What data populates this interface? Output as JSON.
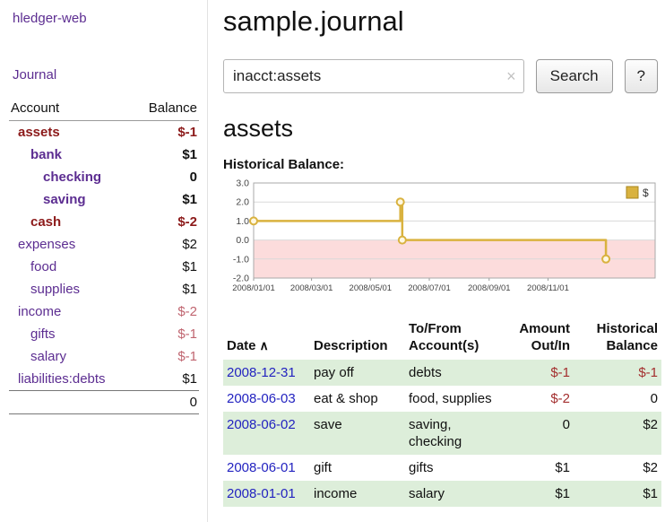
{
  "colors": {
    "purple": "#5c2d91",
    "maroon": "#8c1a1a",
    "negative_soft": "#c06570",
    "link_blue": "#2323c0",
    "row_green": "#ddeeda",
    "chart_line": "#d9b23f",
    "chart_marker_fill": "#fff8e1",
    "chart_negative_fill": "#fcdcdc"
  },
  "brand": {
    "label": "hledger-web"
  },
  "nav": {
    "journal": "Journal"
  },
  "sidebar": {
    "header": {
      "account": "Account",
      "balance": "Balance"
    },
    "accounts": [
      {
        "name": "assets",
        "balance": "$-1"
      },
      {
        "name": "bank",
        "balance": "$1"
      },
      {
        "name": "checking",
        "balance": "0"
      },
      {
        "name": "saving",
        "balance": "$1"
      },
      {
        "name": "cash",
        "balance": "$-2"
      },
      {
        "name": "expenses",
        "balance": "$2"
      },
      {
        "name": "food",
        "balance": "$1"
      },
      {
        "name": "supplies",
        "balance": "$1"
      },
      {
        "name": "income",
        "balance": "$-2"
      },
      {
        "name": "gifts",
        "balance": "$-1"
      },
      {
        "name": "salary",
        "balance": "$-1"
      },
      {
        "name": "liabilities:debts",
        "balance": "$1"
      }
    ],
    "total": "0"
  },
  "main": {
    "title": "sample.journal",
    "search": {
      "value": "inacct:assets",
      "clear_icon": "×",
      "button": "Search",
      "help_button": "?"
    },
    "account_heading": "assets",
    "chart_label": "Historical Balance:"
  },
  "chart_data": {
    "type": "line",
    "step": true,
    "title": "Historical Balance",
    "series": [
      {
        "name": "$",
        "points": [
          [
            "2008-01-01",
            1
          ],
          [
            "2008-06-01",
            2
          ],
          [
            "2008-06-03",
            0
          ],
          [
            "2008-12-31",
            -1
          ]
        ]
      }
    ],
    "ylim": [
      -2.0,
      3.0
    ],
    "yticks": [
      3.0,
      2.0,
      1.0,
      0.0,
      -1.0,
      -2.0
    ],
    "xlim": [
      "2008-01-01",
      "2009-02-20"
    ],
    "xticks": [
      [
        "2008-01-01",
        "2008/01/01"
      ],
      [
        "2008-03-01",
        "2008/03/01"
      ],
      [
        "2008-05-01",
        "2008/05/01"
      ],
      [
        "2008-07-01",
        "2008/07/01"
      ],
      [
        "2008-09-01",
        "2008/09/01"
      ],
      [
        "2008-11-01",
        "2008/11/01"
      ]
    ],
    "legend": {
      "label": "$",
      "position": "top-right"
    },
    "negative_region_shaded": true,
    "grid": "horizontal"
  },
  "register": {
    "headers": {
      "date": "Date",
      "sort_icon": "∧",
      "description": "Description",
      "tofrom_1": "To/From",
      "tofrom_2": "Account(s)",
      "amount_1": "Amount",
      "amount_2": "Out/In",
      "hist_1": "Historical",
      "hist_2": "Balance"
    },
    "rows": [
      {
        "date": "2008-12-31",
        "description": "pay off",
        "accounts": "debts",
        "amount": "$-1",
        "balance": "$-1"
      },
      {
        "date": "2008-06-03",
        "description": "eat & shop",
        "accounts": "food, supplies",
        "amount": "$-2",
        "balance": "0"
      },
      {
        "date": "2008-06-02",
        "description": "save",
        "accounts": "saving, checking",
        "amount": "0",
        "balance": "$2"
      },
      {
        "date": "2008-06-01",
        "description": "gift",
        "accounts": "gifts",
        "amount": "$1",
        "balance": "$2"
      },
      {
        "date": "2008-01-01",
        "description": "income",
        "accounts": "salary",
        "amount": "$1",
        "balance": "$1"
      }
    ]
  }
}
